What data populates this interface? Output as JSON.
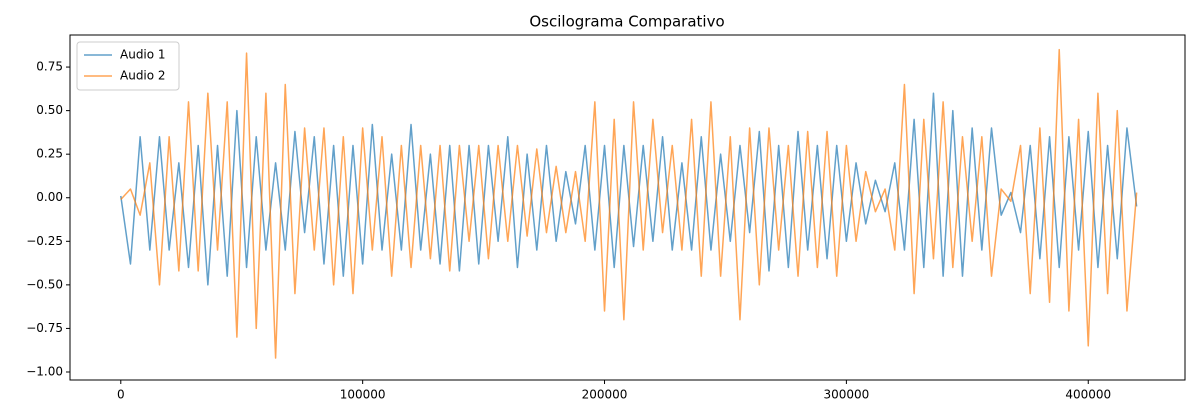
{
  "chart_data": {
    "type": "line",
    "title": "Oscilograma Comparativo",
    "x": [
      0,
      4000,
      8000,
      12000,
      16000,
      20000,
      24000,
      28000,
      32000,
      36000,
      40000,
      44000,
      48000,
      52000,
      56000,
      60000,
      64000,
      68000,
      72000,
      76000,
      80000,
      84000,
      88000,
      92000,
      96000,
      100000,
      104000,
      108000,
      112000,
      116000,
      120000,
      124000,
      128000,
      132000,
      136000,
      140000,
      144000,
      148000,
      152000,
      156000,
      160000,
      164000,
      168000,
      172000,
      176000,
      180000,
      184000,
      188000,
      192000,
      196000,
      200000,
      204000,
      208000,
      212000,
      216000,
      220000,
      224000,
      228000,
      232000,
      236000,
      240000,
      244000,
      248000,
      252000,
      256000,
      260000,
      264000,
      268000,
      272000,
      276000,
      280000,
      284000,
      288000,
      292000,
      296000,
      300000,
      304000,
      308000,
      312000,
      316000,
      320000,
      324000,
      328000,
      332000,
      336000,
      340000,
      344000,
      348000,
      352000,
      356000,
      360000,
      364000,
      368000,
      372000,
      376000,
      380000,
      384000,
      388000,
      392000,
      396000,
      400000,
      404000,
      408000,
      412000,
      416000,
      420000
    ],
    "series": [
      {
        "name": "Audio 1",
        "color": "#1f77b4",
        "values": [
          0.01,
          -0.38,
          0.35,
          -0.3,
          0.35,
          -0.3,
          0.2,
          -0.4,
          0.3,
          -0.5,
          0.3,
          -0.45,
          0.5,
          -0.4,
          0.35,
          -0.3,
          0.2,
          -0.3,
          0.38,
          -0.2,
          0.35,
          -0.38,
          0.3,
          -0.45,
          0.3,
          -0.38,
          0.42,
          -0.3,
          0.25,
          -0.3,
          0.42,
          -0.3,
          0.25,
          -0.38,
          0.3,
          -0.42,
          0.3,
          -0.38,
          0.3,
          -0.25,
          0.35,
          -0.4,
          0.25,
          -0.3,
          0.3,
          -0.25,
          0.15,
          -0.15,
          0.3,
          -0.3,
          0.3,
          -0.4,
          0.3,
          -0.28,
          0.3,
          -0.25,
          0.35,
          -0.3,
          0.2,
          -0.3,
          0.35,
          -0.3,
          0.25,
          -0.25,
          0.3,
          -0.2,
          0.38,
          -0.42,
          0.3,
          -0.4,
          0.38,
          -0.3,
          0.3,
          -0.35,
          0.3,
          -0.25,
          0.2,
          -0.15,
          0.1,
          -0.08,
          0.2,
          -0.3,
          0.45,
          -0.4,
          0.6,
          -0.45,
          0.5,
          -0.45,
          0.4,
          -0.3,
          0.4,
          -0.1,
          0.03,
          -0.2,
          0.3,
          -0.35,
          0.35,
          -0.4,
          0.35,
          -0.3,
          0.38,
          -0.4,
          0.3,
          -0.35,
          0.4,
          -0.05
        ]
      },
      {
        "name": "Audio 2",
        "color": "#ff7f0e",
        "values": [
          -0.01,
          0.05,
          -0.1,
          0.2,
          -0.5,
          0.35,
          -0.42,
          0.55,
          -0.42,
          0.6,
          -0.3,
          0.55,
          -0.8,
          0.83,
          -0.75,
          0.6,
          -0.92,
          0.65,
          -0.55,
          0.4,
          -0.3,
          0.4,
          -0.5,
          0.35,
          -0.55,
          0.4,
          -0.3,
          0.35,
          -0.45,
          0.3,
          -0.4,
          0.3,
          -0.35,
          0.3,
          -0.42,
          0.3,
          -0.25,
          0.3,
          -0.35,
          0.3,
          -0.25,
          0.3,
          -0.22,
          0.28,
          -0.2,
          0.18,
          -0.2,
          0.15,
          -0.25,
          0.55,
          -0.65,
          0.45,
          -0.7,
          0.55,
          -0.3,
          0.45,
          -0.2,
          0.3,
          -0.3,
          0.45,
          -0.45,
          0.55,
          -0.45,
          0.35,
          -0.7,
          0.4,
          -0.5,
          0.4,
          -0.3,
          0.3,
          -0.45,
          0.38,
          -0.4,
          0.38,
          -0.45,
          0.3,
          -0.25,
          0.15,
          -0.08,
          0.05,
          -0.3,
          0.65,
          -0.55,
          0.45,
          -0.35,
          0.55,
          -0.4,
          0.35,
          -0.25,
          0.35,
          -0.45,
          0.05,
          -0.02,
          0.3,
          -0.55,
          0.4,
          -0.6,
          0.85,
          -0.65,
          0.45,
          -0.85,
          0.6,
          -0.55,
          0.5,
          -0.65,
          0.03
        ]
      }
    ],
    "xlim": [
      -21000,
      440000
    ],
    "xticks": [
      0,
      100000,
      200000,
      300000,
      400000
    ],
    "ylim": [
      -1.046,
      0.934
    ],
    "yticks": [
      {
        "value": -1.0,
        "label": "−1.00"
      },
      {
        "value": -0.75,
        "label": "−0.75"
      },
      {
        "value": -0.5,
        "label": "−0.50"
      },
      {
        "value": -0.25,
        "label": "−0.25"
      },
      {
        "value": 0,
        "label": "0.00"
      },
      {
        "value": 0.25,
        "label": "0.25"
      },
      {
        "value": 0.5,
        "label": "0.50"
      },
      {
        "value": 0.75,
        "label": "0.75"
      }
    ],
    "legend": "upper left",
    "opacity": 0.7
  }
}
